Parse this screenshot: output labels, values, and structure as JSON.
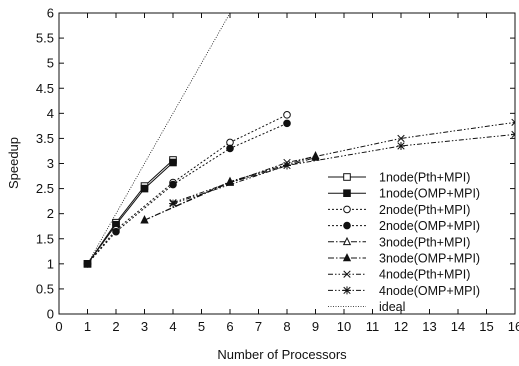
{
  "chart_data": {
    "type": "line",
    "title": "",
    "xlabel": "Number of Processors",
    "ylabel": "Speedup",
    "xlim": [
      0,
      16
    ],
    "ylim": [
      0,
      6
    ],
    "xticks": [
      "0",
      "1",
      "2",
      "3",
      "4",
      "5",
      "6",
      "7",
      "8",
      "9",
      "10",
      "11",
      "12",
      "13",
      "14",
      "15",
      "16"
    ],
    "yticks": [
      "0",
      "0.5",
      "1",
      "1.5",
      "2",
      "2.5",
      "3",
      "3.5",
      "4",
      "4.5",
      "5",
      "5.5",
      "6"
    ],
    "grid": false,
    "legend_position": "bottom-right",
    "series": [
      {
        "name": "1node(Pth+MPI)",
        "marker": "square-open",
        "dash": "solid",
        "x": [
          1,
          2,
          3,
          4
        ],
        "y": [
          1.0,
          1.82,
          2.55,
          3.07
        ]
      },
      {
        "name": "1node(OMP+MPI)",
        "marker": "square-filled",
        "dash": "solid",
        "x": [
          1,
          2,
          3,
          4
        ],
        "y": [
          1.0,
          1.78,
          2.5,
          3.02
        ]
      },
      {
        "name": "2node(Pth+MPI)",
        "marker": "circle-open",
        "dash": "dotted",
        "x": [
          1,
          2,
          4,
          6,
          8
        ],
        "y": [
          1.0,
          1.68,
          2.62,
          3.42,
          3.97
        ]
      },
      {
        "name": "2node(OMP+MPI)",
        "marker": "circle-filled",
        "dash": "dotted",
        "x": [
          1,
          2,
          4,
          6,
          8
        ],
        "y": [
          1.0,
          1.64,
          2.58,
          3.3,
          3.8
        ]
      },
      {
        "name": "3node(Pth+MPI)",
        "marker": "triangle-open",
        "dash": "dashdot",
        "x": [
          3,
          6,
          9
        ],
        "y": [
          1.87,
          2.64,
          3.15
        ]
      },
      {
        "name": "3node(OMP+MPI)",
        "marker": "triangle-filled",
        "dash": "dashdot",
        "x": [
          3,
          6,
          9
        ],
        "y": [
          1.87,
          2.62,
          3.12
        ]
      },
      {
        "name": "4node(Pth+MPI)",
        "marker": "x",
        "dash": "dashdotdot",
        "x": [
          4,
          8,
          12,
          16
        ],
        "y": [
          2.22,
          3.02,
          3.5,
          3.82
        ]
      },
      {
        "name": "4node(OMP+MPI)",
        "marker": "asterisk",
        "dash": "dashdotdot",
        "x": [
          4,
          8,
          12,
          16
        ],
        "y": [
          2.2,
          2.96,
          3.35,
          3.58
        ]
      },
      {
        "name": "ideal",
        "marker": "none",
        "dash": "fine-dotted",
        "x": [
          1,
          6
        ],
        "y": [
          1,
          6
        ]
      }
    ]
  }
}
